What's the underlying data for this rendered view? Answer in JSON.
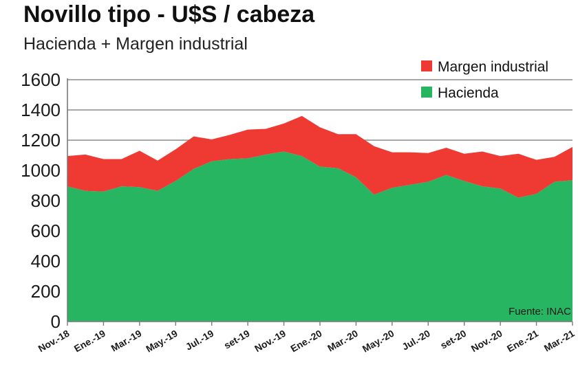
{
  "chart_data": {
    "type": "area",
    "stacked": true,
    "title": "Novillo tipo - U$S / cabeza",
    "subtitle": "Hacienda + Margen industrial",
    "ylim": [
      0,
      1600
    ],
    "yticks": [
      0,
      200,
      400,
      600,
      800,
      1000,
      1200,
      1400,
      1600
    ],
    "grid": true,
    "legend_position": "top-right",
    "source": "Fuente: INAC",
    "x_tick_labels": [
      "Nov.-18",
      "Ene.-19",
      "Mar.-19",
      "May.-19",
      "Jul.-19",
      "set-19",
      "Nov.-19",
      "Ene.-20",
      "Mar.-20",
      "May.-20",
      "Jul.-20",
      "set-20",
      "Nov.-20",
      "Ene.-21",
      "Mar.-21"
    ],
    "series": [
      {
        "name": "Hacienda",
        "color": "#27b562",
        "values": [
          895,
          865,
          860,
          895,
          890,
          865,
          930,
          1010,
          1060,
          1075,
          1080,
          1105,
          1125,
          1095,
          1025,
          1015,
          955,
          840,
          885,
          905,
          925,
          970,
          930,
          895,
          880,
          820,
          845,
          925,
          935
        ]
      },
      {
        "name": "Margen industrial",
        "color": "#ee3a33",
        "values": [
          200,
          240,
          215,
          180,
          240,
          200,
          210,
          215,
          145,
          160,
          190,
          170,
          185,
          265,
          260,
          225,
          285,
          320,
          235,
          215,
          190,
          180,
          180,
          230,
          215,
          290,
          225,
          165,
          220
        ]
      }
    ]
  }
}
